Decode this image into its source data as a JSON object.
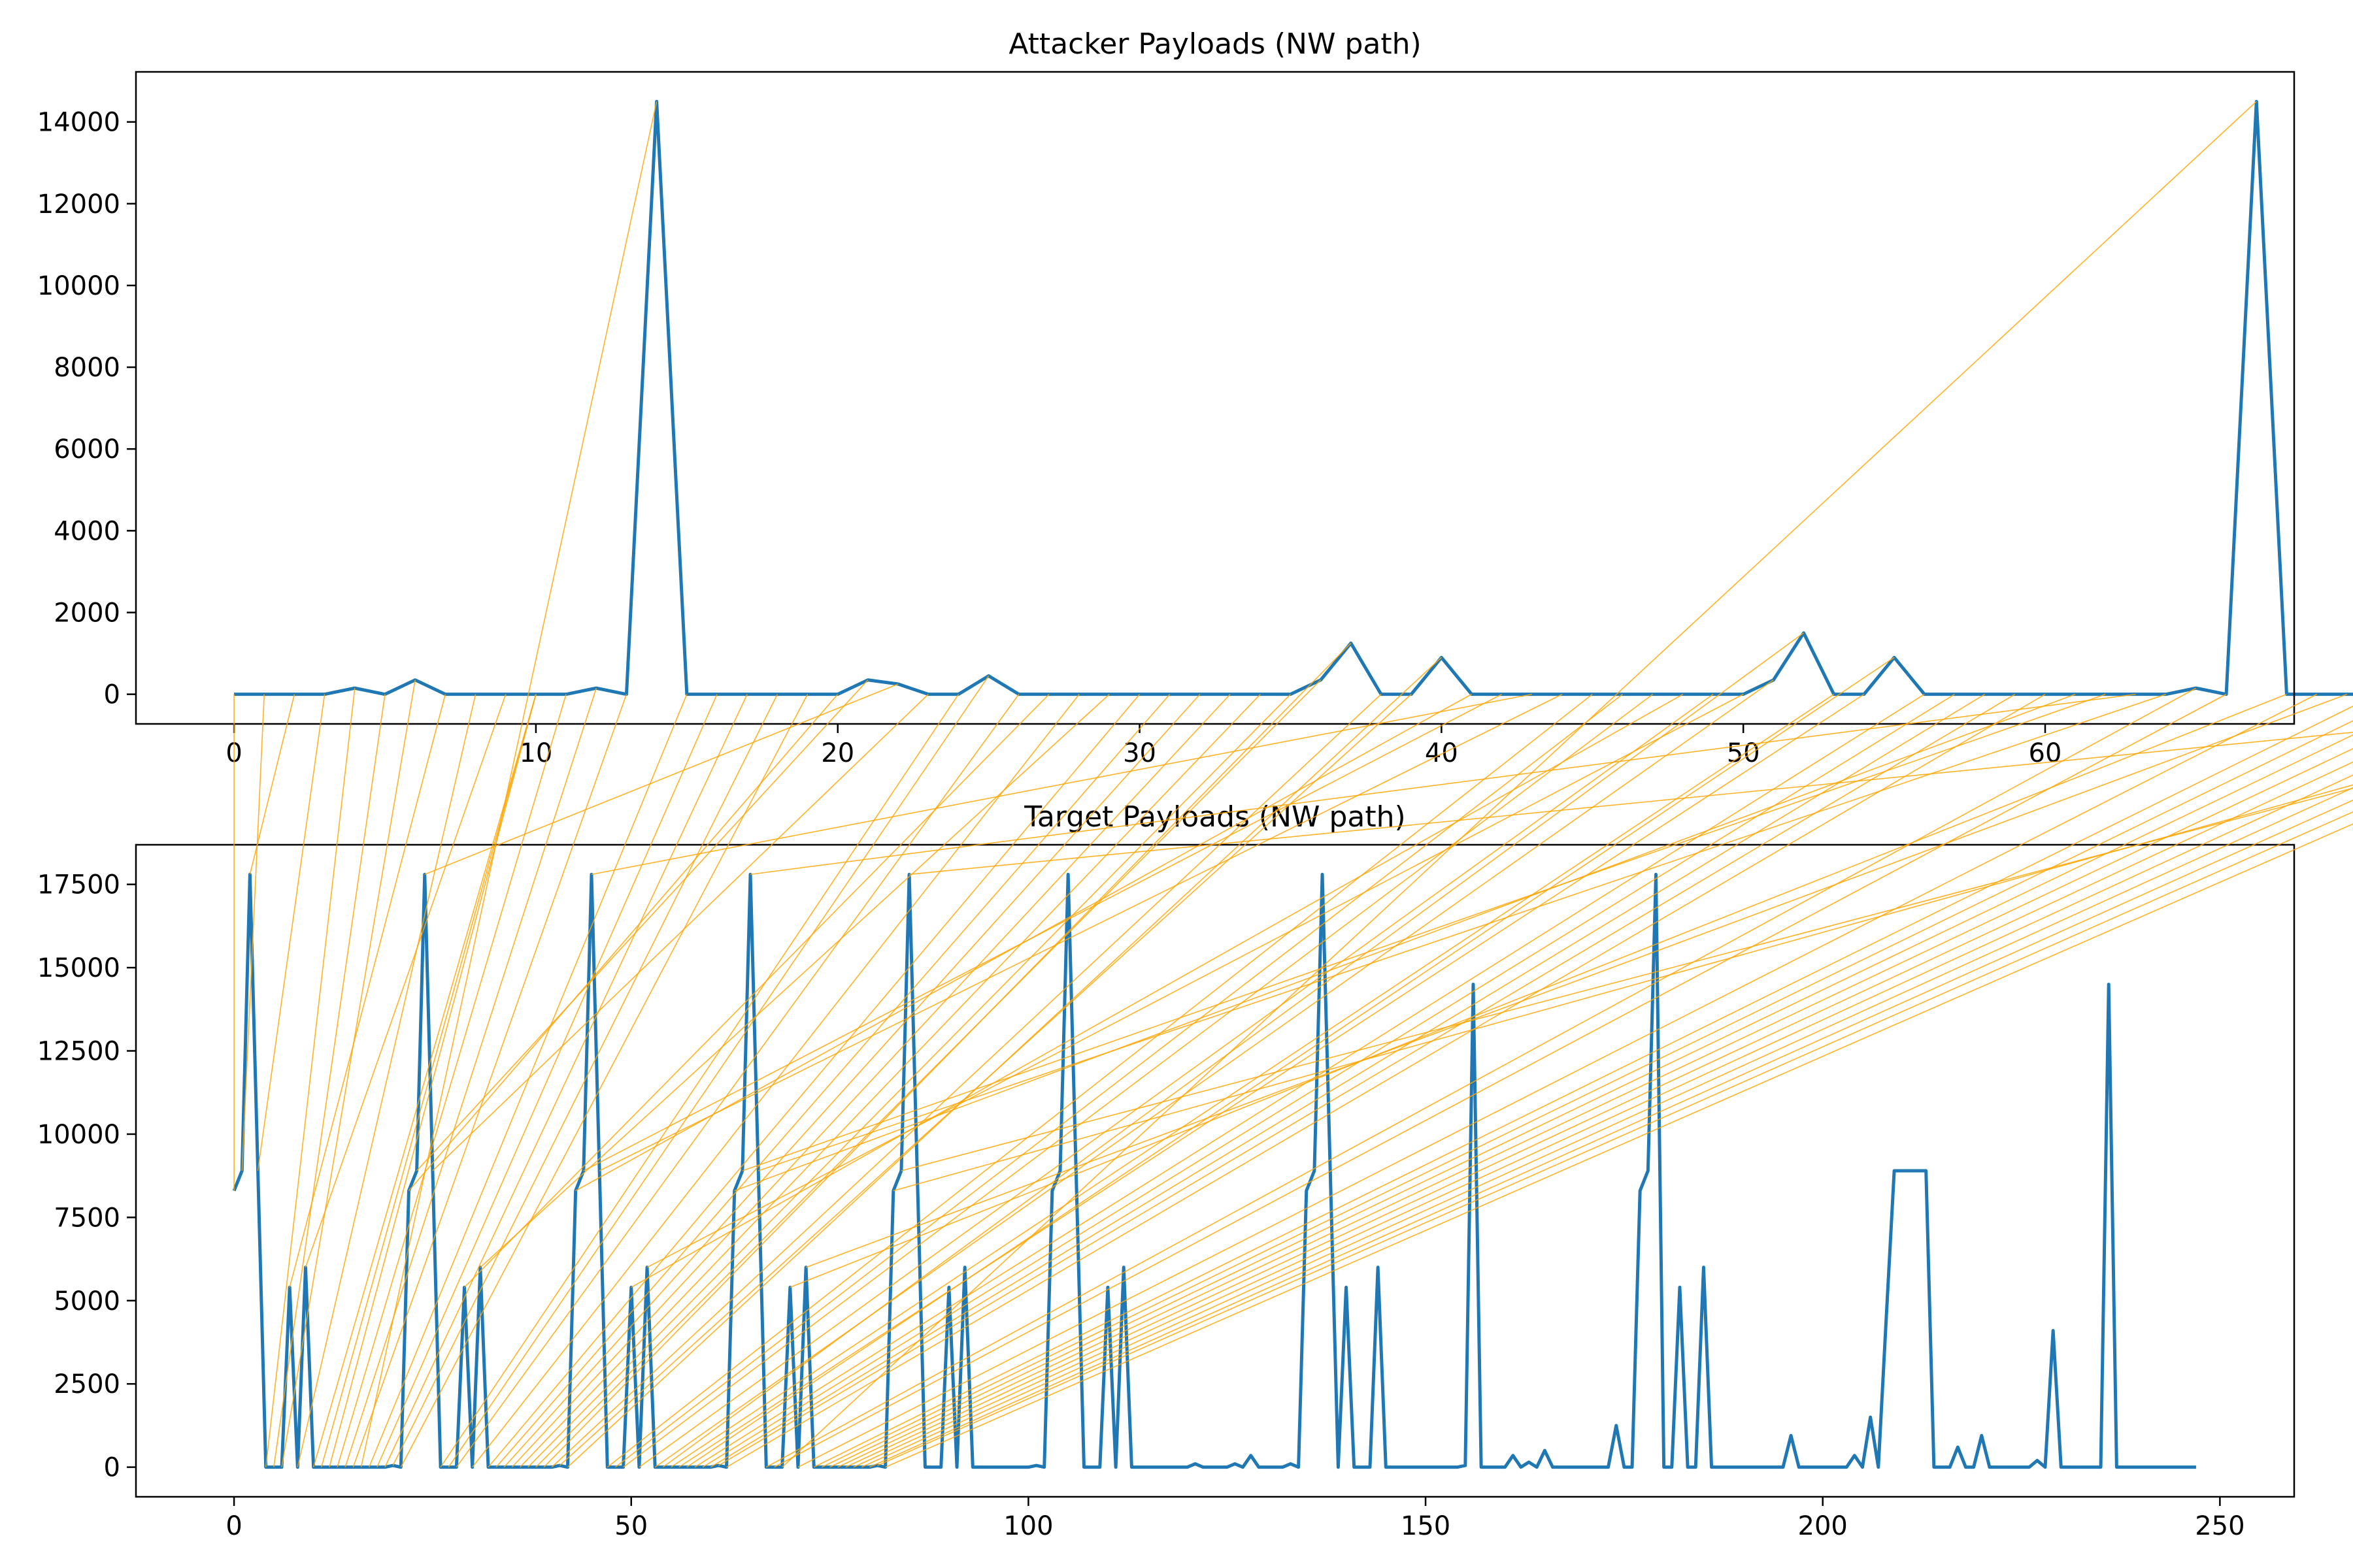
{
  "chart_data": [
    {
      "type": "line",
      "title": "Attacker Payloads (NW path)",
      "xlabel": "",
      "ylabel": "",
      "xlim": [
        -3.25,
        68.25
      ],
      "ylim": [
        -725,
        15225
      ],
      "xticks": [
        0,
        10,
        20,
        30,
        40,
        50,
        60
      ],
      "yticks": [
        0,
        2000,
        4000,
        6000,
        8000,
        10000,
        12000,
        14000
      ],
      "grid": false,
      "line_color": "#1f77b4",
      "series": [
        {
          "values": [
            0,
            0,
            0,
            0,
            150,
            0,
            350,
            0,
            0,
            0,
            0,
            0,
            150,
            0,
            14500,
            0,
            0,
            0,
            0,
            0,
            0,
            350,
            250,
            0,
            0,
            450,
            0,
            0,
            0,
            0,
            0,
            0,
            0,
            0,
            0,
            0,
            350,
            1250,
            0,
            0,
            900,
            0,
            0,
            0,
            0,
            0,
            0,
            0,
            0,
            0,
            0,
            350,
            1500,
            0,
            0,
            900,
            0,
            0,
            0,
            0,
            0,
            0,
            0,
            0,
            0,
            150,
            0,
            14500,
            0,
            0,
            0,
            0,
            0,
            0,
            0,
            0,
            0,
            0,
            0,
            0,
            0,
            0,
            0,
            0
          ]
        }
      ]
    },
    {
      "type": "line",
      "title": "Target Payloads (NW path)",
      "xlabel": "",
      "ylabel": "",
      "xlim": [
        -12.35,
        259.35
      ],
      "ylim": [
        -890,
        18690
      ],
      "xticks": [
        0,
        50,
        100,
        150,
        200,
        250
      ],
      "yticks": [
        0,
        2500,
        5000,
        7500,
        10000,
        12500,
        15000,
        17500
      ],
      "grid": false,
      "line_color": "#1f77b4",
      "series": [
        {
          "values": [
            8300,
            8900,
            17800,
            8900,
            0,
            0,
            0,
            5400,
            0,
            6000,
            0,
            0,
            0,
            0,
            0,
            0,
            0,
            0,
            0,
            0,
            50,
            0,
            8300,
            8900,
            17800,
            8900,
            0,
            0,
            0,
            5400,
            0,
            6000,
            0,
            0,
            0,
            0,
            0,
            0,
            0,
            0,
            0,
            50,
            0,
            8300,
            8900,
            17800,
            8900,
            0,
            0,
            0,
            5400,
            0,
            6000,
            0,
            0,
            0,
            0,
            0,
            0,
            0,
            0,
            50,
            0,
            8300,
            8900,
            17800,
            8900,
            0,
            0,
            0,
            5400,
            0,
            6000,
            0,
            0,
            0,
            0,
            0,
            0,
            0,
            0,
            50,
            0,
            8300,
            8900,
            17800,
            8900,
            0,
            0,
            0,
            5400,
            0,
            6000,
            0,
            0,
            0,
            0,
            0,
            0,
            0,
            0,
            50,
            0,
            8300,
            8900,
            17800,
            8900,
            0,
            0,
            0,
            5400,
            0,
            6000,
            0,
            0,
            0,
            0,
            0,
            0,
            0,
            0,
            100,
            0,
            0,
            0,
            0,
            100,
            0,
            350,
            0,
            0,
            0,
            0,
            100,
            0,
            8300,
            8900,
            17800,
            8900,
            0,
            5400,
            0,
            0,
            0,
            6000,
            0,
            0,
            0,
            0,
            0,
            0,
            0,
            0,
            0,
            0,
            50,
            14500,
            0,
            0,
            0,
            0,
            350,
            0,
            150,
            0,
            500,
            0,
            0,
            0,
            0,
            0,
            0,
            0,
            0,
            1250,
            0,
            0,
            8300,
            8900,
            17800,
            0,
            0,
            5400,
            0,
            0,
            6000,
            0,
            0,
            0,
            0,
            0,
            0,
            0,
            0,
            0,
            0,
            950,
            0,
            0,
            0,
            0,
            0,
            0,
            0,
            350,
            0,
            1500,
            0,
            4500,
            8900,
            8900,
            8900,
            8900,
            8900,
            0,
            0,
            0,
            600,
            0,
            0,
            950,
            0,
            0,
            0,
            0,
            0,
            0,
            200,
            0,
            4100,
            0,
            0,
            0,
            0,
            0,
            0,
            14500,
            0,
            0,
            0,
            0,
            0,
            0,
            0,
            0,
            0,
            0,
            0
          ]
        }
      ]
    }
  ],
  "alignment": {
    "color": "#ffa500",
    "path": [
      [
        0,
        0
      ],
      [
        1,
        1
      ],
      [
        2,
        2
      ],
      [
        3,
        3
      ],
      [
        4,
        4
      ],
      [
        5,
        5
      ],
      [
        6,
        6
      ],
      [
        7,
        7
      ],
      [
        8,
        8
      ],
      [
        9,
        9
      ],
      [
        10,
        10
      ],
      [
        10,
        11
      ],
      [
        10,
        12
      ],
      [
        11,
        13
      ],
      [
        12,
        14
      ],
      [
        13,
        15
      ],
      [
        14,
        16
      ],
      [
        15,
        17
      ],
      [
        16,
        18
      ],
      [
        17,
        19
      ],
      [
        18,
        20
      ],
      [
        19,
        21
      ],
      [
        20,
        22
      ],
      [
        21,
        23
      ],
      [
        22,
        24
      ],
      [
        23,
        25
      ],
      [
        24,
        26
      ],
      [
        25,
        27
      ],
      [
        26,
        28
      ],
      [
        27,
        29
      ],
      [
        28,
        30
      ],
      [
        29,
        31
      ],
      [
        30,
        32
      ],
      [
        31,
        33
      ],
      [
        32,
        34
      ],
      [
        33,
        35
      ],
      [
        34,
        36
      ],
      [
        35,
        37
      ],
      [
        36,
        38
      ],
      [
        37,
        39
      ],
      [
        38,
        40
      ],
      [
        39,
        41
      ],
      [
        40,
        42
      ],
      [
        41,
        43
      ],
      [
        42,
        44
      ],
      [
        43,
        45
      ],
      [
        44,
        46
      ],
      [
        45,
        47
      ],
      [
        46,
        48
      ],
      [
        47,
        49
      ],
      [
        48,
        50
      ],
      [
        49,
        51
      ],
      [
        50,
        52
      ],
      [
        51,
        53
      ],
      [
        52,
        54
      ],
      [
        53,
        55
      ],
      [
        54,
        56
      ],
      [
        55,
        57
      ],
      [
        56,
        58
      ],
      [
        57,
        59
      ],
      [
        58,
        60
      ],
      [
        59,
        61
      ],
      [
        60,
        62
      ],
      [
        61,
        63
      ],
      [
        62,
        64
      ],
      [
        63,
        65
      ],
      [
        64,
        66
      ],
      [
        65,
        67
      ],
      [
        66,
        68
      ],
      [
        67,
        69
      ],
      [
        68,
        70
      ],
      [
        69,
        71
      ],
      [
        70,
        72
      ],
      [
        71,
        73
      ],
      [
        72,
        74
      ],
      [
        73,
        75
      ],
      [
        74,
        76
      ],
      [
        75,
        77
      ],
      [
        76,
        78
      ],
      [
        77,
        79
      ],
      [
        78,
        80
      ],
      [
        79,
        81
      ],
      [
        80,
        82
      ],
      [
        81,
        83
      ],
      [
        82,
        84
      ],
      [
        83,
        85
      ],
      [
        84,
        86
      ],
      [
        85,
        87
      ],
      [
        86,
        88
      ],
      [
        87,
        89
      ],
      [
        88,
        90
      ],
      [
        89,
        91
      ],
      [
        90,
        92
      ],
      [
        91,
        93
      ],
      [
        92,
        94
      ],
      [
        93,
        95
      ],
      [
        94,
        96
      ],
      [
        95,
        97
      ],
      [
        96,
        98
      ],
      [
        97,
        99
      ],
      [
        98,
        100
      ],
      [
        99,
        101
      ],
      [
        100,
        102
      ],
      [
        101,
        103
      ],
      [
        102,
        104
      ],
      [
        103,
        105
      ],
      [
        104,
        106
      ],
      [
        105,
        107
      ],
      [
        106,
        108
      ],
      [
        107,
        109
      ],
      [
        108,
        110
      ],
      [
        109,
        111
      ],
      [
        110,
        112
      ],
      [
        111,
        113
      ],
      [
        112,
        114
      ],
      [
        113,
        115
      ],
      [
        114,
        116
      ],
      [
        115,
        117
      ],
      [
        116,
        118
      ],
      [
        117,
        119
      ],
      [
        118,
        120
      ],
      [
        119,
        121
      ],
      [
        120,
        122
      ],
      [
        121,
        123
      ],
      [
        122,
        124
      ],
      [
        123,
        125
      ],
      [
        124,
        126
      ],
      [
        125,
        127
      ],
      [
        126,
        128
      ],
      [
        127,
        129
      ],
      [
        128,
        130
      ],
      [
        129,
        131
      ],
      [
        130,
        132
      ],
      [
        131,
        133
      ],
      [
        132,
        134
      ],
      [
        133,
        135
      ],
      [
        134,
        136
      ],
      [
        135,
        137
      ],
      [
        136,
        138
      ],
      [
        137,
        139
      ],
      [
        138,
        140
      ],
      [
        139,
        141
      ],
      [
        140,
        142
      ],
      [
        141,
        143
      ],
      [
        142,
        144
      ],
      [
        143,
        145
      ],
      [
        144,
        146
      ],
      [
        145,
        147
      ],
      [
        146,
        148
      ],
      [
        147,
        149
      ],
      [
        148,
        150
      ],
      [
        149,
        151
      ],
      [
        150,
        152
      ],
      [
        151,
        153
      ],
      [
        152,
        154
      ],
      [
        153,
        155
      ],
      [
        154,
        156
      ],
      [
        155,
        157
      ],
      [
        156,
        158
      ],
      [
        157,
        159
      ],
      [
        158,
        160
      ],
      [
        159,
        161
      ],
      [
        160,
        162
      ],
      [
        161,
        163
      ],
      [
        162,
        164
      ],
      [
        163,
        165
      ],
      [
        164,
        166
      ],
      [
        165,
        167
      ],
      [
        166,
        168
      ],
      [
        167,
        169
      ],
      [
        168,
        170
      ],
      [
        169,
        171
      ],
      [
        170,
        172
      ],
      [
        171,
        173
      ],
      [
        172,
        174
      ],
      [
        173,
        175
      ],
      [
        174,
        176
      ],
      [
        175,
        177
      ],
      [
        176,
        178
      ],
      [
        177,
        179
      ],
      [
        178,
        180
      ],
      [
        179,
        181
      ],
      [
        180,
        182
      ],
      [
        181,
        183
      ],
      [
        182,
        184
      ],
      [
        183,
        185
      ],
      [
        184,
        186
      ],
      [
        185,
        187
      ],
      [
        186,
        188
      ],
      [
        187,
        189
      ],
      [
        188,
        190
      ],
      [
        189,
        191
      ],
      [
        190,
        192
      ],
      [
        191,
        193
      ],
      [
        192,
        194
      ],
      [
        193,
        195
      ],
      [
        194,
        196
      ],
      [
        195,
        197
      ],
      [
        196,
        198
      ],
      [
        197,
        199
      ],
      [
        198,
        200
      ],
      [
        199,
        201
      ],
      [
        200,
        202
      ],
      [
        201,
        203
      ],
      [
        202,
        204
      ],
      [
        203,
        205
      ],
      [
        204,
        206
      ],
      [
        205,
        207
      ],
      [
        206,
        208
      ],
      [
        207,
        209
      ],
      [
        208,
        210
      ],
      [
        209,
        211
      ],
      [
        210,
        212
      ],
      [
        211,
        213
      ],
      [
        212,
        214
      ],
      [
        213,
        215
      ],
      [
        214,
        216
      ],
      [
        215,
        217
      ],
      [
        216,
        218
      ],
      [
        217,
        219
      ],
      [
        218,
        220
      ],
      [
        219,
        221
      ],
      [
        220,
        222
      ],
      [
        221,
        223
      ],
      [
        222,
        224
      ],
      [
        223,
        225
      ],
      [
        224,
        226
      ],
      [
        225,
        227
      ],
      [
        226,
        228
      ],
      [
        227,
        229
      ],
      [
        228,
        230
      ],
      [
        229,
        231
      ],
      [
        230,
        232
      ],
      [
        231,
        233
      ],
      [
        232,
        234
      ],
      [
        233,
        235
      ],
      [
        234,
        236
      ],
      [
        235,
        237
      ],
      [
        236,
        238
      ],
      [
        237,
        239
      ],
      [
        238,
        240
      ],
      [
        239,
        241
      ],
      [
        240,
        242
      ],
      [
        241,
        243
      ],
      [
        242,
        244
      ],
      [
        243,
        245
      ],
      [
        244,
        246
      ],
      [
        245,
        247
      ]
    ]
  }
}
